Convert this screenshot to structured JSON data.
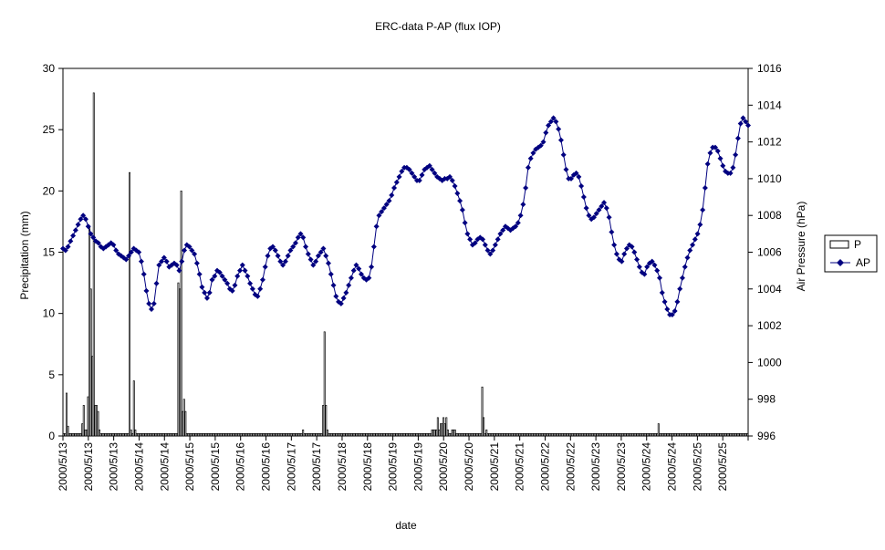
{
  "chart_data": {
    "type": "bar+line",
    "title": "ERC-data P-AP (flux IOP)",
    "xlabel": "date",
    "ylabel_left": "Precipitation (mm)",
    "ylabel_right": "Air Pressure (hPa)",
    "ylim_left": [
      0,
      30
    ],
    "yticks_left": [
      0,
      5,
      10,
      15,
      20,
      25,
      30
    ],
    "ylim_right": [
      996,
      1016
    ],
    "yticks_right": [
      996,
      998,
      1000,
      1002,
      1004,
      1006,
      1008,
      1010,
      1012,
      1014,
      1016
    ],
    "x_tick_labels": [
      "2000/5/13",
      "2000/5/13",
      "2000/5/13",
      "2000/5/14",
      "2000/5/14",
      "2000/5/15",
      "2000/5/15",
      "2000/5/16",
      "2000/5/16",
      "2000/5/17",
      "2000/5/17",
      "2000/5/18",
      "2000/5/18",
      "2000/5/19",
      "2000/5/19",
      "2000/5/20",
      "2000/5/20",
      "2000/5/21",
      "2000/5/21",
      "2000/5/22",
      "2000/5/22",
      "2000/5/23",
      "2000/5/23",
      "2000/5/24",
      "2000/5/24",
      "2000/5/25",
      "2000/5/25"
    ],
    "legend": {
      "position": "right",
      "entries": [
        "P",
        "AP"
      ]
    },
    "series_P": {
      "name": "P",
      "values": [
        0.2,
        0.2,
        3.5,
        0.8,
        0.2,
        0.2,
        0.2,
        0.2,
        0.2,
        0.2,
        0.2,
        0.2,
        0.2,
        1,
        2.5,
        0.5,
        0.5,
        3.2,
        17,
        12,
        6.5,
        28,
        2.5,
        2.5,
        2,
        0.5,
        0.2,
        0.2,
        0.2,
        0.2,
        0.2,
        0.2,
        0.2,
        0.2,
        0.2,
        0.2,
        0.2,
        0.2,
        0.2,
        0.2,
        0.2,
        0.2,
        0.2,
        0.2,
        0.2,
        0.2,
        21.5,
        0.5,
        0.2,
        4.5,
        0.5,
        0.2,
        0.2,
        0.2,
        0.2,
        0.2,
        0.2,
        0.2,
        0.2,
        0.2,
        0.2,
        0.2,
        0.2,
        0.2,
        0.2,
        0.2,
        0.2,
        0.2,
        0.2,
        0.2,
        0.2,
        0.2,
        0.2,
        0.2,
        0.2,
        0.2,
        0.2,
        0.2,
        0.2,
        0.2,
        12.5,
        12,
        20,
        2,
        3,
        2,
        0.2,
        0.2,
        0.2,
        0.2,
        0.2,
        0.2,
        0.2,
        0.2,
        0.2,
        0.2,
        0.2,
        0.2,
        0.2,
        0.2,
        0.2,
        0.2,
        0.2,
        0.2,
        0.2,
        0.2,
        0.2,
        0.2,
        0.2,
        0.2,
        0.2,
        0.2,
        0.2,
        0.2,
        0.2,
        0.2,
        0.2,
        0.2,
        0.2,
        0.2,
        0.2,
        0.2,
        0.2,
        0.2,
        0.2,
        0.2,
        0.2,
        0.2,
        0.2,
        0.2,
        0.2,
        0.2,
        0.2,
        0.2,
        0.2,
        0.2,
        0.2,
        0.2,
        0.2,
        0.2,
        0.2,
        0.2,
        0.2,
        0.2,
        0.2,
        0.2,
        0.2,
        0.2,
        0.2,
        0.2,
        0.2,
        0.2,
        0.2,
        0.2,
        0.2,
        0.2,
        0.2,
        0.2,
        0.2,
        0.2,
        0.2,
        0.2,
        0.2,
        0.2,
        0.2,
        0.2,
        0.2,
        0.5,
        0.2,
        0.2,
        0.2,
        0.2,
        0.2,
        0.2,
        0.2,
        0.2,
        0.2,
        0.2,
        0.2,
        0.2,
        0.2,
        2.5,
        8.5,
        2.5,
        0.5,
        0.2,
        0.2,
        0.2,
        0.2,
        0.2,
        0.2,
        0.2,
        0.2,
        0.2,
        0.2,
        0.2,
        0.2,
        0.2,
        0.2,
        0.2,
        0.2,
        0.2,
        0.2,
        0.2,
        0.2,
        0.2,
        0.2,
        0.2,
        0.2,
        0.2,
        0.2,
        0.2,
        0.2,
        0.2,
        0.2,
        0.2,
        0.2,
        0.2,
        0.2,
        0.2,
        0.2,
        0.2,
        0.2,
        0.2,
        0.2,
        0.2,
        0.2,
        0.2,
        0.2,
        0.2,
        0.2,
        0.2,
        0.2,
        0.2,
        0.2,
        0.2,
        0.2,
        0.2,
        0.2,
        0.2,
        0.2,
        0.2,
        0.2,
        0.2,
        0.2,
        0.2,
        0.2,
        0.2,
        0.2,
        0.2,
        0.2,
        0.2,
        0.2,
        0.2,
        0.2,
        0.2,
        0.2,
        0.5,
        0.5,
        0.5,
        0.5,
        1.5,
        0.5,
        1,
        1,
        1.5,
        1,
        1.5,
        0.5,
        0.2,
        0.2,
        0.5,
        0.5,
        0.5,
        0.2,
        0.2,
        0.2,
        0.2,
        0.2,
        0.2,
        0.2,
        0.2,
        0.2,
        0.2,
        0.2,
        0.2,
        0.2,
        0.2,
        0.2,
        0.2,
        0.2,
        0.2,
        4,
        1.5,
        0.2,
        0.5,
        0.2,
        0.2,
        0.2,
        0.2,
        0.2,
        0.2,
        0.2,
        0.2,
        0.2,
        0.2,
        0.2,
        0.2,
        0.2,
        0.2,
        0.2,
        0.2,
        0.2,
        0.2,
        0.2,
        0.2,
        0.2,
        0.2,
        0.2,
        0.2,
        0.2,
        0.2,
        0.2,
        0.2,
        0.2,
        0.2,
        0.2,
        0.2,
        0.2,
        0.2,
        0.2,
        0.2,
        0.2,
        0.2,
        0.2,
        0.2,
        0.2,
        0.2,
        0.2,
        0.2,
        0.2,
        0.2,
        0.2,
        0.2,
        0.2,
        0.2,
        0.2,
        0.2,
        0.2,
        0.2,
        0.2,
        0.2,
        0.2,
        0.2,
        0.2,
        0.2,
        0.2,
        0.2,
        0.2,
        0.2,
        0.2,
        0.2,
        0.2,
        0.2,
        0.2,
        0.2,
        0.2,
        0.2,
        0.2,
        0.2,
        0.2,
        0.2,
        0.2,
        0.2,
        0.2,
        0.2,
        0.2,
        0.2,
        0.2,
        0.2,
        0.2,
        0.2,
        0.2,
        0.2,
        0.2,
        0.2,
        0.2,
        0.2,
        0.2,
        0.2,
        0.2,
        0.2,
        0.2,
        0.2,
        0.2,
        0.2,
        0.2,
        0.2,
        0.2,
        0.2,
        0.2,
        0.2,
        0.2,
        0.2,
        0.2,
        0.2,
        0.2,
        0.2,
        0.2,
        0.2,
        0.2,
        0.2,
        0.2,
        0.2,
        0.2,
        1,
        0.2,
        0.2,
        0.2,
        0.2,
        0.2,
        0.2,
        0.2,
        0.2,
        0.2,
        0.2,
        0.2,
        0.2,
        0.2,
        0.2,
        0.2,
        0.2,
        0.2,
        0.2,
        0.2,
        0.2,
        0.2,
        0.2,
        0.2,
        0.2,
        0.2,
        0.2,
        0.2,
        0.2,
        0.2,
        0.2,
        0.2,
        0.2,
        0.2,
        0.2,
        0.2,
        0.2,
        0.2,
        0.2,
        0.2,
        0.2,
        0.2,
        0.2,
        0.2,
        0.2,
        0.2,
        0.2,
        0.2,
        0.2,
        0.2,
        0.2,
        0.2,
        0.2,
        0.2,
        0.2,
        0.2,
        0.2,
        0.2,
        0.2,
        0.2,
        0.2,
        0.2,
        0.2
      ]
    },
    "series_AP": {
      "name": "AP",
      "values": [
        1006.2,
        1006.1,
        1006.3,
        1006.6,
        1006.9,
        1007.2,
        1007.5,
        1007.8,
        1008.0,
        1007.8,
        1007.4,
        1007.0,
        1006.8,
        1006.6,
        1006.5,
        1006.3,
        1006.2,
        1006.3,
        1006.4,
        1006.5,
        1006.4,
        1006.1,
        1005.9,
        1005.8,
        1005.7,
        1005.6,
        1005.8,
        1006.0,
        1006.2,
        1006.1,
        1006.0,
        1005.5,
        1004.8,
        1003.9,
        1003.2,
        1002.9,
        1003.2,
        1004.3,
        1005.3,
        1005.5,
        1005.7,
        1005.5,
        1005.2,
        1005.3,
        1005.4,
        1005.3,
        1005.0,
        1005.5,
        1006.1,
        1006.4,
        1006.3,
        1006.1,
        1005.9,
        1005.4,
        1004.8,
        1004.1,
        1003.8,
        1003.5,
        1003.8,
        1004.5,
        1004.7,
        1005.0,
        1004.9,
        1004.7,
        1004.5,
        1004.3,
        1004.0,
        1003.9,
        1004.2,
        1004.7,
        1005.0,
        1005.3,
        1005.0,
        1004.7,
        1004.3,
        1004.0,
        1003.7,
        1003.6,
        1004.0,
        1004.5,
        1005.2,
        1005.8,
        1006.2,
        1006.3,
        1006.1,
        1005.8,
        1005.5,
        1005.3,
        1005.5,
        1005.8,
        1006.1,
        1006.3,
        1006.5,
        1006.8,
        1007.0,
        1006.8,
        1006.3,
        1005.9,
        1005.6,
        1005.3,
        1005.5,
        1005.8,
        1006.0,
        1006.2,
        1005.8,
        1005.4,
        1004.8,
        1004.2,
        1003.6,
        1003.3,
        1003.2,
        1003.5,
        1003.8,
        1004.2,
        1004.6,
        1005.0,
        1005.3,
        1005.1,
        1004.8,
        1004.6,
        1004.5,
        1004.6,
        1005.2,
        1006.3,
        1007.4,
        1008.0,
        1008.2,
        1008.4,
        1008.6,
        1008.8,
        1009.1,
        1009.5,
        1009.8,
        1010.1,
        1010.4,
        1010.6,
        1010.6,
        1010.5,
        1010.3,
        1010.1,
        1009.9,
        1009.9,
        1010.2,
        1010.5,
        1010.6,
        1010.7,
        1010.5,
        1010.3,
        1010.1,
        1010.0,
        1009.9,
        1010.0,
        1010.0,
        1010.1,
        1009.9,
        1009.6,
        1009.2,
        1008.8,
        1008.3,
        1007.6,
        1007.0,
        1006.7,
        1006.4,
        1006.5,
        1006.7,
        1006.8,
        1006.7,
        1006.4,
        1006.1,
        1005.9,
        1006.1,
        1006.4,
        1006.7,
        1007.0,
        1007.2,
        1007.4,
        1007.3,
        1007.2,
        1007.3,
        1007.4,
        1007.6,
        1008.0,
        1008.6,
        1009.5,
        1010.6,
        1011.1,
        1011.4,
        1011.6,
        1011.7,
        1011.8,
        1012.0,
        1012.5,
        1012.9,
        1013.1,
        1013.3,
        1013.1,
        1012.7,
        1012.1,
        1011.3,
        1010.5,
        1010.0,
        1010.0,
        1010.2,
        1010.3,
        1010.1,
        1009.6,
        1009.0,
        1008.4,
        1008.0,
        1007.8,
        1007.9,
        1008.1,
        1008.3,
        1008.5,
        1008.7,
        1008.4,
        1007.9,
        1007.1,
        1006.4,
        1005.9,
        1005.6,
        1005.5,
        1005.9,
        1006.2,
        1006.4,
        1006.3,
        1006.0,
        1005.6,
        1005.2,
        1004.9,
        1004.8,
        1005.2,
        1005.4,
        1005.5,
        1005.3,
        1005.0,
        1004.6,
        1003.8,
        1003.3,
        1002.9,
        1002.6,
        1002.6,
        1002.8,
        1003.3,
        1004.0,
        1004.6,
        1005.2,
        1005.7,
        1006.1,
        1006.4,
        1006.7,
        1007.0,
        1007.5,
        1008.3,
        1009.5,
        1010.8,
        1011.4,
        1011.7,
        1011.7,
        1011.5,
        1011.1,
        1010.7,
        1010.4,
        1010.3,
        1010.3,
        1010.6,
        1011.3,
        1012.2,
        1013.0,
        1013.3,
        1013.1,
        1012.9
      ]
    }
  }
}
